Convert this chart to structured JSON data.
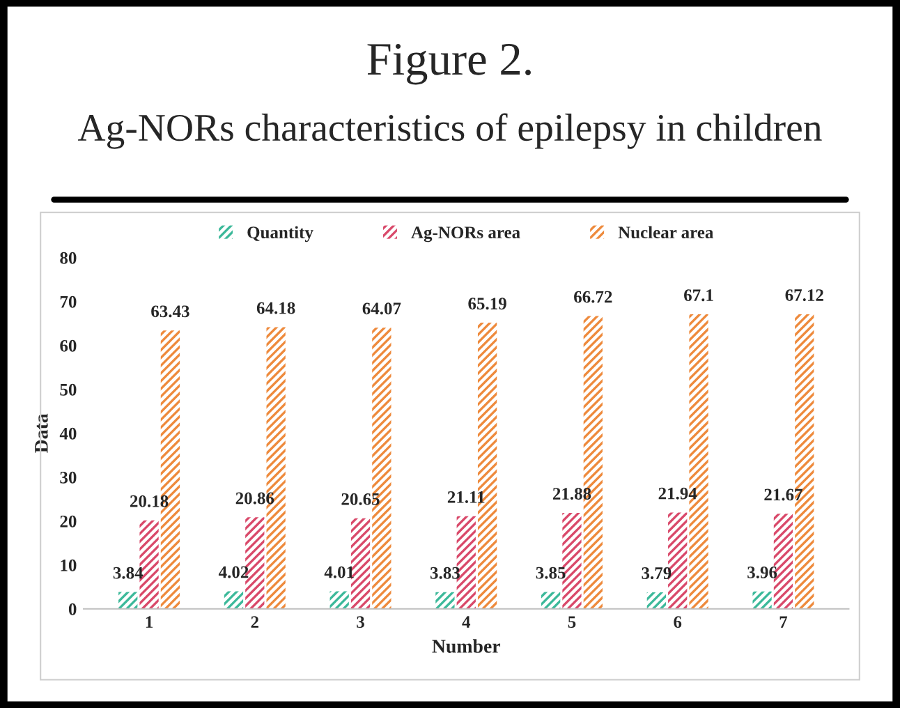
{
  "chart_data": {
    "type": "bar",
    "title": "Figure 2.",
    "subtitle": "Ag-NORs characteristics of epilepsy in children",
    "xlabel": "Number",
    "ylabel": "Data",
    "categories": [
      "1",
      "2",
      "3",
      "4",
      "5",
      "6",
      "7"
    ],
    "series": [
      {
        "name": "Quantity",
        "color": "#3cb99a",
        "values": [
          3.84,
          4.02,
          4.01,
          3.83,
          3.85,
          3.79,
          3.96
        ]
      },
      {
        "name": "Ag-NORs area",
        "color": "#d9496a",
        "values": [
          20.18,
          20.86,
          20.65,
          21.11,
          21.88,
          21.94,
          21.67
        ]
      },
      {
        "name": "Nuclear area",
        "color": "#ee8a3c",
        "values": [
          63.43,
          64.18,
          64.07,
          65.19,
          66.72,
          67.1,
          67.12
        ]
      }
    ],
    "ylim": [
      0,
      80
    ],
    "yticks": [
      0,
      10,
      20,
      30,
      40,
      50,
      60,
      70,
      80
    ],
    "grid": false,
    "legend": "top",
    "data_labels": true
  }
}
